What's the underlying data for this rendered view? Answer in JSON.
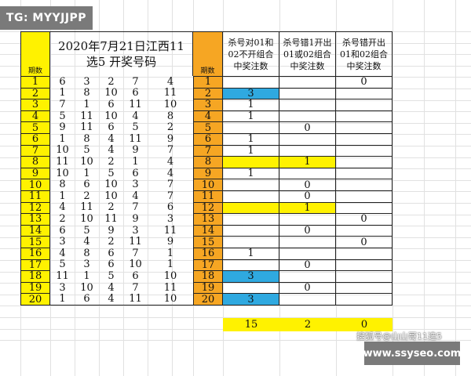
{
  "watermarks": {
    "top_left": "TG: MYYJJPP",
    "bottom_right": "www.ssyseo.com",
    "sohu": "搜狐号@山山哥11选5"
  },
  "table": {
    "title": "2020年7月21日江西11选5 开奖号码",
    "period_header": "期数",
    "stat_headers": [
      "杀号对01和02不开组合中奖注数",
      "杀号错1开出01或02组合中奖注数",
      "杀号错开出01和02组合中奖注数"
    ],
    "rows": [
      {
        "period": "1",
        "nums": [
          "6",
          "3",
          "2",
          "7",
          "4"
        ],
        "s1": "",
        "s2": "",
        "s3": "0",
        "s1hl": "",
        "s2hl": ""
      },
      {
        "period": "2",
        "nums": [
          "1",
          "8",
          "10",
          "6",
          "11"
        ],
        "s1": "3",
        "s2": "",
        "s3": "",
        "s1hl": "blue",
        "s2hl": ""
      },
      {
        "period": "3",
        "nums": [
          "7",
          "1",
          "6",
          "11",
          "10"
        ],
        "s1": "1",
        "s2": "",
        "s3": "",
        "s1hl": "",
        "s2hl": ""
      },
      {
        "period": "4",
        "nums": [
          "5",
          "11",
          "10",
          "4",
          "8"
        ],
        "s1": "1",
        "s2": "",
        "s3": "",
        "s1hl": "",
        "s2hl": ""
      },
      {
        "period": "5",
        "nums": [
          "9",
          "11",
          "6",
          "5",
          "2"
        ],
        "s1": "",
        "s2": "0",
        "s3": "",
        "s1hl": "",
        "s2hl": ""
      },
      {
        "period": "6",
        "nums": [
          "1",
          "8",
          "4",
          "11",
          "9"
        ],
        "s1": "1",
        "s2": "",
        "s3": "",
        "s1hl": "",
        "s2hl": ""
      },
      {
        "period": "7",
        "nums": [
          "10",
          "5",
          "4",
          "9",
          "7"
        ],
        "s1": "1",
        "s2": "",
        "s3": "",
        "s1hl": "",
        "s2hl": ""
      },
      {
        "period": "8",
        "nums": [
          "11",
          "10",
          "2",
          "1",
          "4"
        ],
        "s1": "",
        "s2": "1",
        "s3": "",
        "s1hl": "yellow",
        "s2hl": "yellow"
      },
      {
        "period": "9",
        "nums": [
          "10",
          "1",
          "5",
          "6",
          "4"
        ],
        "s1": "1",
        "s2": "",
        "s3": "",
        "s1hl": "",
        "s2hl": ""
      },
      {
        "period": "10",
        "nums": [
          "8",
          "6",
          "10",
          "3",
          "7"
        ],
        "s1": "",
        "s2": "0",
        "s3": "",
        "s1hl": "",
        "s2hl": ""
      },
      {
        "period": "11",
        "nums": [
          "1",
          "2",
          "10",
          "4",
          "7"
        ],
        "s1": "",
        "s2": "0",
        "s3": "",
        "s1hl": "",
        "s2hl": ""
      },
      {
        "period": "12",
        "nums": [
          "4",
          "11",
          "2",
          "7",
          "6"
        ],
        "s1": "",
        "s2": "1",
        "s3": "",
        "s1hl": "yellow",
        "s2hl": "yellow"
      },
      {
        "period": "13",
        "nums": [
          "2",
          "10",
          "11",
          "9",
          "3"
        ],
        "s1": "",
        "s2": "",
        "s3": "0",
        "s1hl": "",
        "s2hl": ""
      },
      {
        "period": "14",
        "nums": [
          "6",
          "5",
          "9",
          "3",
          "11"
        ],
        "s1": "",
        "s2": "0",
        "s3": "",
        "s1hl": "",
        "s2hl": ""
      },
      {
        "period": "15",
        "nums": [
          "3",
          "4",
          "2",
          "11",
          "9"
        ],
        "s1": "",
        "s2": "",
        "s3": "0",
        "s1hl": "",
        "s2hl": ""
      },
      {
        "period": "16",
        "nums": [
          "4",
          "8",
          "6",
          "7",
          "1"
        ],
        "s1": "1",
        "s2": "",
        "s3": "",
        "s1hl": "",
        "s2hl": ""
      },
      {
        "period": "17",
        "nums": [
          "5",
          "3",
          "6",
          "10",
          "1"
        ],
        "s1": "",
        "s2": "0",
        "s3": "",
        "s1hl": "",
        "s2hl": ""
      },
      {
        "period": "18",
        "nums": [
          "11",
          "1",
          "5",
          "6",
          "10"
        ],
        "s1": "3",
        "s2": "",
        "s3": "",
        "s1hl": "blue",
        "s2hl": ""
      },
      {
        "period": "19",
        "nums": [
          "3",
          "10",
          "4",
          "7",
          "11"
        ],
        "s1": "",
        "s2": "0",
        "s3": "",
        "s1hl": "",
        "s2hl": ""
      },
      {
        "period": "20",
        "nums": [
          "1",
          "6",
          "4",
          "11",
          "10"
        ],
        "s1": "3",
        "s2": "",
        "s3": "",
        "s1hl": "blue",
        "s2hl": ""
      }
    ],
    "totals": [
      "15",
      "2",
      "0"
    ]
  },
  "colors": {
    "yellow": "#fff200",
    "orange": "#f6a623",
    "blue": "#2fa9e0"
  }
}
